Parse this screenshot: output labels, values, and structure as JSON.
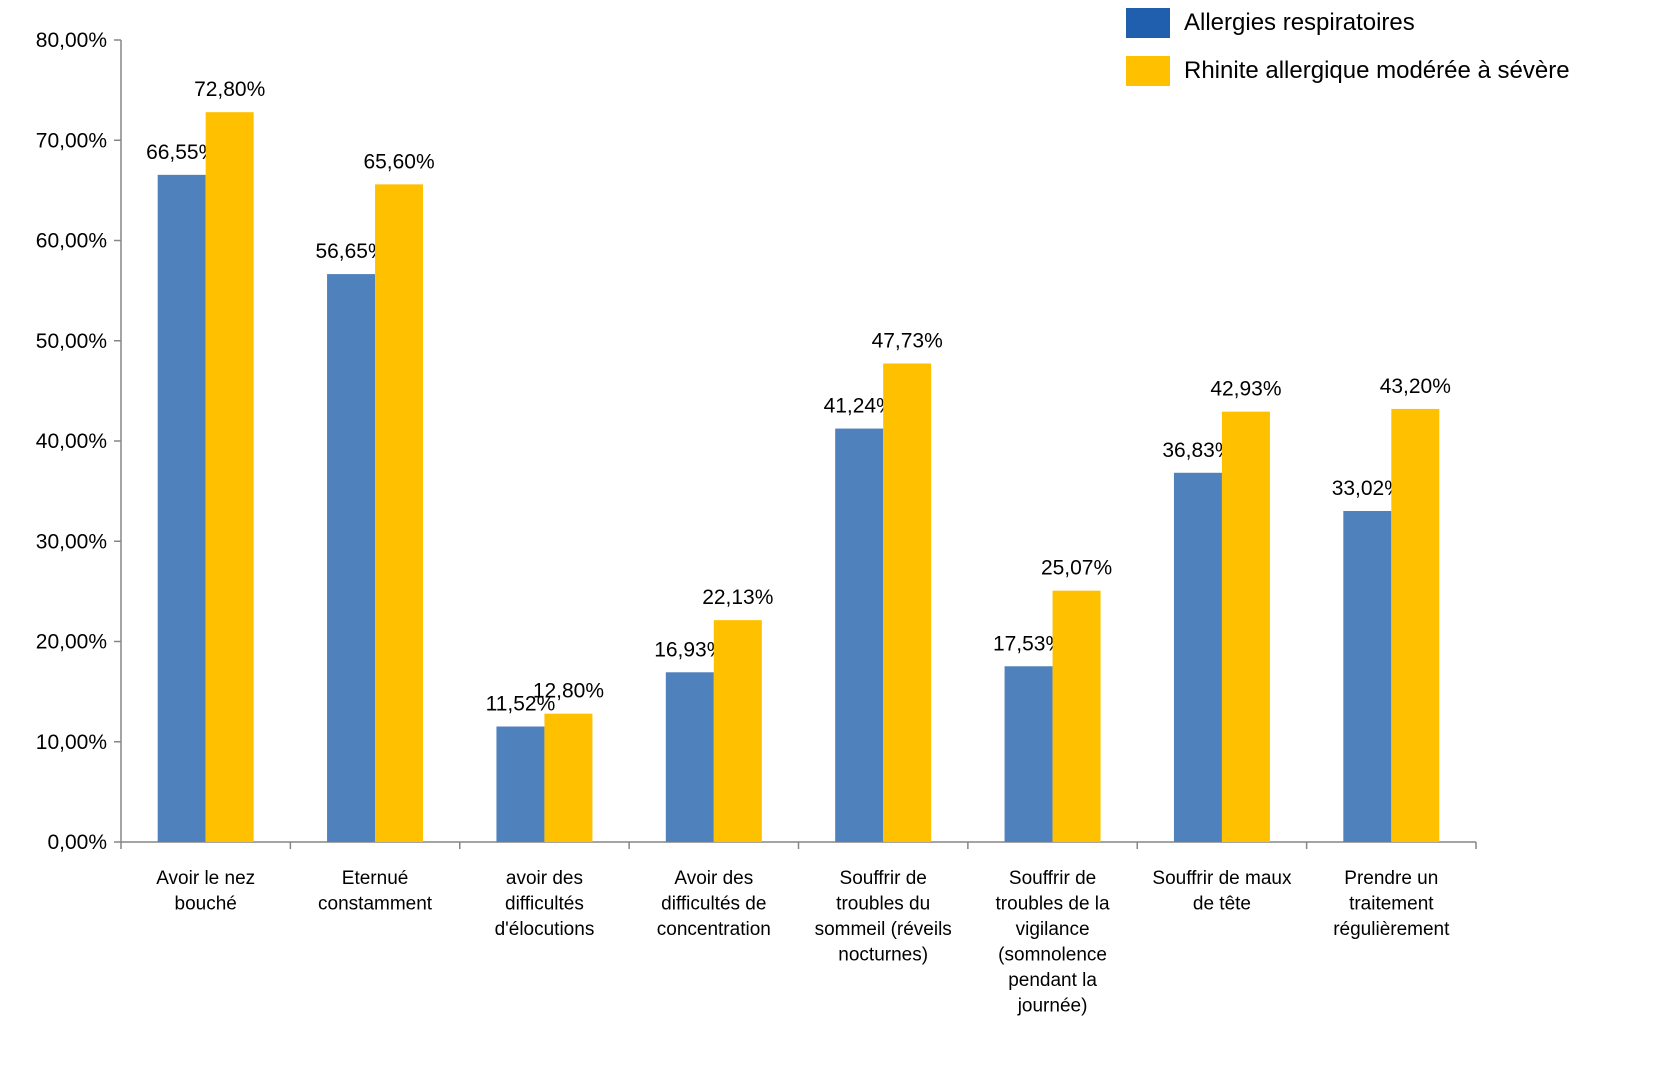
{
  "chart_data": {
    "type": "bar",
    "title": "",
    "xlabel": "",
    "ylabel": "",
    "ylim": [
      0,
      80
    ],
    "y_ticks": [
      "0,00%",
      "10,00%",
      "20,00%",
      "30,00%",
      "40,00%",
      "50,00%",
      "60,00%",
      "70,00%",
      "80,00%"
    ],
    "grid": false,
    "legend_position": "top-right",
    "categories": [
      [
        "Avoir le nez",
        "bouché"
      ],
      [
        "Eternué",
        "constamment"
      ],
      [
        "avoir des",
        "difficultés",
        "d'élocutions"
      ],
      [
        "Avoir des",
        "difficultés de",
        "concentration"
      ],
      [
        "Souffrir de",
        "troubles du",
        "sommeil (réveils",
        "nocturnes)"
      ],
      [
        "Souffrir de",
        "troubles de la",
        "vigilance",
        "(somnolence",
        "pendant la",
        "journée)"
      ],
      [
        "Souffrir de maux",
        "de tête"
      ],
      [
        "Prendre un",
        "traitement",
        "régulièrement"
      ]
    ],
    "series": [
      {
        "name": "Allergies respiratoires",
        "color": "#4f81bd",
        "values": [
          66.55,
          56.65,
          11.52,
          16.93,
          41.24,
          17.53,
          36.83,
          33.02
        ],
        "labels": [
          "66,55%",
          "56,65%",
          "11,52%",
          "16,93%",
          "41,24%",
          "17,53%",
          "36,83%",
          "33,02%"
        ]
      },
      {
        "name": "Rhinite allergique modérée à sévère",
        "color": "#ffc000",
        "values": [
          72.8,
          65.6,
          12.8,
          22.13,
          47.73,
          25.07,
          42.93,
          43.2
        ],
        "labels": [
          "72,80%",
          "65,60%",
          "12,80%",
          "22,13%",
          "47,73%",
          "25,07%",
          "42,93%",
          "43,20%"
        ]
      }
    ]
  },
  "legend": {
    "items": [
      {
        "label": "Allergies respiratoires",
        "color": "#1f5fad"
      },
      {
        "label": "Rhinite allergique modérée à sévère",
        "color": "#ffc000"
      }
    ]
  }
}
